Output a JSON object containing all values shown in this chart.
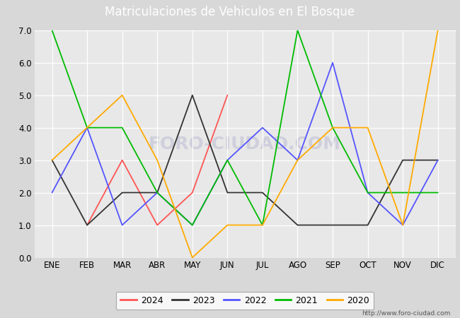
{
  "title": "Matriculaciones de Vehiculos en El Bosque",
  "title_bg_color": "#5b9bd5",
  "title_text_color": "#ffffff",
  "ylim": [
    0.0,
    7.0
  ],
  "yticks": [
    0.0,
    1.0,
    2.0,
    3.0,
    4.0,
    5.0,
    6.0,
    7.0
  ],
  "months": [
    "ENE",
    "FEB",
    "MAR",
    "ABR",
    "MAY",
    "JUN",
    "JUL",
    "AGO",
    "SEP",
    "OCT",
    "NOV",
    "DIC"
  ],
  "series": {
    "2024": {
      "color": "#ff5555",
      "data": [
        null,
        1.0,
        3.0,
        1.0,
        2.0,
        5.0,
        null,
        null,
        null,
        null,
        null,
        null
      ]
    },
    "2023": {
      "color": "#333333",
      "data": [
        3.0,
        1.0,
        2.0,
        2.0,
        5.0,
        2.0,
        2.0,
        1.0,
        1.0,
        1.0,
        3.0,
        3.0
      ]
    },
    "2022": {
      "color": "#5555ff",
      "data": [
        2.0,
        4.0,
        1.0,
        2.0,
        1.0,
        3.0,
        4.0,
        3.0,
        6.0,
        2.0,
        1.0,
        3.0
      ]
    },
    "2021": {
      "color": "#00bb00",
      "data": [
        7.0,
        4.0,
        4.0,
        2.0,
        1.0,
        3.0,
        1.0,
        7.0,
        4.0,
        2.0,
        2.0,
        2.0
      ]
    },
    "2020": {
      "color": "#ffaa00",
      "data": [
        3.0,
        4.0,
        5.0,
        3.0,
        0.0,
        1.0,
        1.0,
        3.0,
        4.0,
        4.0,
        1.0,
        7.0
      ]
    }
  },
  "legend_order": [
    "2024",
    "2023",
    "2022",
    "2021",
    "2020"
  ],
  "watermark": "FORO-CIUDAD.COM",
  "url_text": "http://www.foro-ciudad.com",
  "outer_bg_color": "#d8d8d8",
  "plot_bg_color": "#e8e8e8",
  "grid_color": "#ffffff",
  "tick_fontsize": 8.5,
  "legend_fontsize": 9,
  "title_fontsize": 12
}
